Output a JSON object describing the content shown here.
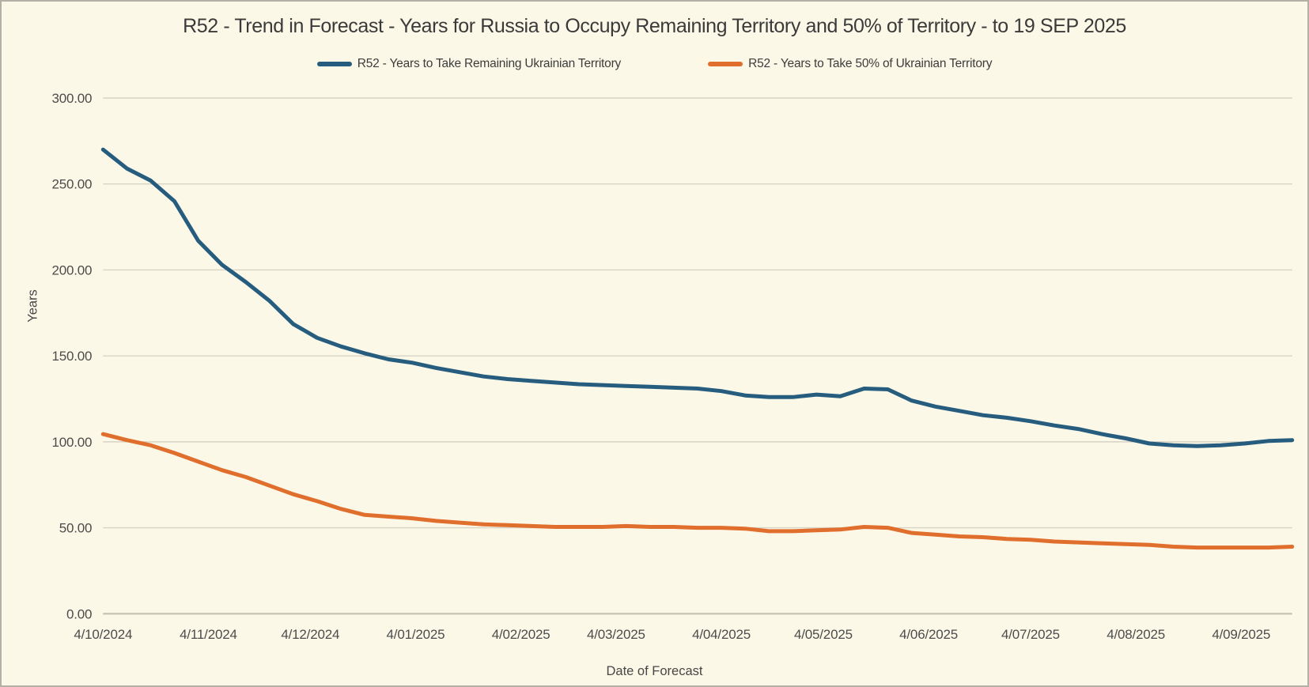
{
  "chart_data": {
    "type": "line",
    "title": "R52 - Trend in Forecast - Years for Russia to Occupy Remaining Territory and 50% of Territory - to 19 SEP 2025",
    "xlabel": "Date of Forecast",
    "ylabel": "Years",
    "ylim": [
      0,
      300
    ],
    "grid": "horizontal",
    "legend_position": "top-center",
    "y_tick_labels": [
      "0.00",
      "50.00",
      "100.00",
      "150.00",
      "200.00",
      "250.00",
      "300.00"
    ],
    "x_tick_labels": [
      "4/10/2024",
      "4/11/2024",
      "4/12/2024",
      "4/01/2025",
      "4/02/2025",
      "4/03/2025",
      "4/04/2025",
      "4/05/2025",
      "4/06/2025",
      "4/07/2025",
      "4/08/2025",
      "4/09/2025"
    ],
    "x_tick_day_offsets": [
      0,
      31,
      61,
      92,
      123,
      151,
      182,
      212,
      243,
      273,
      304,
      335
    ],
    "x_span_days": 350,
    "series": [
      {
        "name": "R52 - Years to Take Remaining Ukrainian Territory",
        "color": "#265d7f",
        "x_step_days": 7,
        "values": [
          270,
          259,
          252,
          240,
          217,
          203,
          193,
          182,
          168.5,
          160.5,
          155.5,
          151.5,
          148,
          146,
          143,
          140.5,
          138,
          136.5,
          135.5,
          134.5,
          133.5,
          133,
          132.5,
          132,
          131.5,
          131,
          129.5,
          127,
          126,
          126,
          127.5,
          126.5,
          131,
          130.5,
          124,
          120.5,
          118,
          115.5,
          114,
          112,
          109.5,
          107.5,
          104.5,
          102,
          99,
          98,
          97.5,
          98,
          99,
          100.5,
          101
        ]
      },
      {
        "name": "R52 - Years to Take  50% of Ukrainian Territory",
        "color": "#e06e2d",
        "x_step_days": 7,
        "values": [
          104.5,
          101,
          98,
          93.5,
          88.5,
          83.5,
          79.5,
          74.5,
          69.5,
          65.5,
          61,
          57.5,
          56.5,
          55.5,
          54,
          53,
          52,
          51.5,
          51,
          50.5,
          50.5,
          50.5,
          51,
          50.5,
          50.5,
          50,
          50,
          49.5,
          48,
          48,
          48.5,
          49,
          50.5,
          50,
          47,
          46,
          45,
          44.5,
          43.5,
          43,
          42,
          41.5,
          41,
          40.5,
          40,
          39,
          38.5,
          38.5,
          38.5,
          38.5,
          39
        ]
      }
    ]
  }
}
